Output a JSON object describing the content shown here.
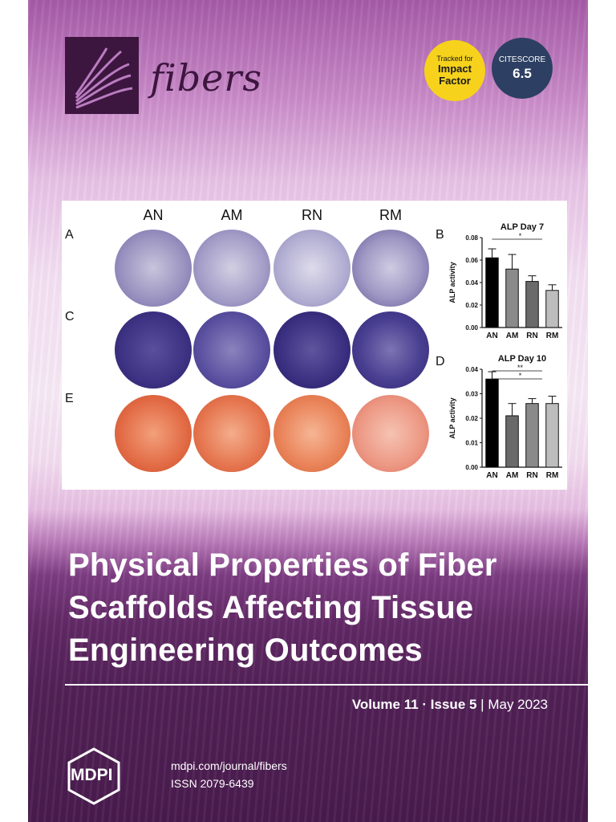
{
  "journal": {
    "name": "fibers"
  },
  "badges": {
    "impact": {
      "line1": "Tracked for",
      "line2": "Impact",
      "line3": "Factor",
      "color": "#f6d21c"
    },
    "citescore": {
      "line1": "CITESCORE",
      "value": "6.5",
      "color": "#2d3f62"
    }
  },
  "figure": {
    "column_labels": [
      "AN",
      "AM",
      "RN",
      "RM"
    ],
    "row_labels": [
      "A",
      "C",
      "E"
    ],
    "chart_labels": [
      "B",
      "D"
    ],
    "row_colors": {
      "A": "#8d83b4",
      "C": "#4b3f8f",
      "E": "#e07048"
    }
  },
  "chart_data": [
    {
      "type": "bar",
      "title": "ALP Day 7",
      "ylabel": "ALP activity",
      "categories": [
        "AN",
        "AM",
        "RN",
        "RM"
      ],
      "values": [
        0.062,
        0.052,
        0.041,
        0.033
      ],
      "errors": [
        0.008,
        0.013,
        0.005,
        0.005
      ],
      "ylim": [
        0,
        0.08
      ],
      "yticks": [
        "0.00",
        "0.02",
        "0.04",
        "0.06",
        "0.08"
      ],
      "bar_colors": [
        "#000000",
        "#8a8a8a",
        "#6a6a6a",
        "#bdbdbd"
      ],
      "annotations": [
        "*"
      ]
    },
    {
      "type": "bar",
      "title": "ALP Day 10",
      "ylabel": "ALP activity",
      "categories": [
        "AN",
        "AM",
        "RN",
        "RM"
      ],
      "values": [
        0.036,
        0.021,
        0.026,
        0.026
      ],
      "errors": [
        0.003,
        0.005,
        0.002,
        0.003
      ],
      "ylim": [
        0,
        0.04
      ],
      "yticks": [
        "0.00",
        "0.01",
        "0.02",
        "0.03",
        "0.04"
      ],
      "bar_colors": [
        "#000000",
        "#6a6a6a",
        "#8a8a8a",
        "#bdbdbd"
      ],
      "annotations": [
        "**",
        "*"
      ]
    }
  ],
  "article": {
    "title_line1": "Physical Properties of Fiber",
    "title_line2": "Scaffolds Affecting Tissue",
    "title_line3": "Engineering Outcomes"
  },
  "issue": {
    "volume": "Volume 11",
    "sep": " · ",
    "issue": "Issue 5",
    "bar": " | ",
    "date": "May 2023"
  },
  "footer": {
    "publisher": "MDPI",
    "url": "mdpi.com/journal/fibers",
    "issn": "ISSN 2079-6439"
  }
}
